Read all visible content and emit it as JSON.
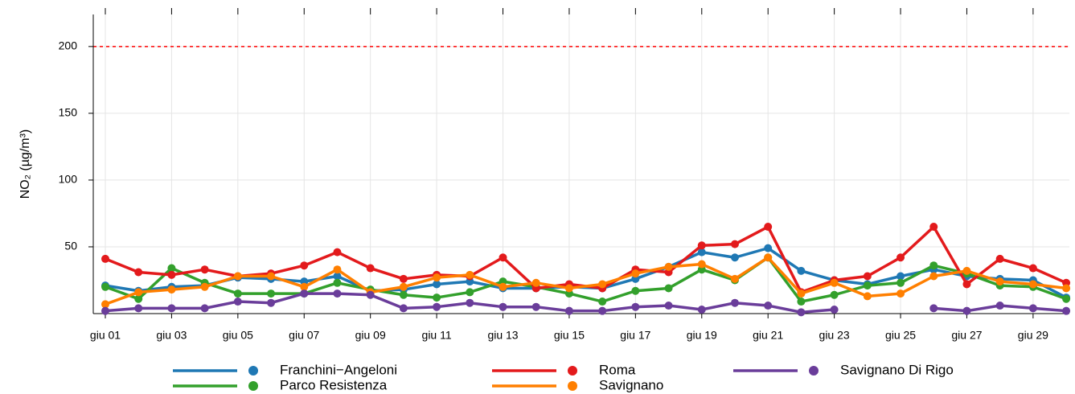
{
  "chart_data": {
    "type": "line",
    "y_label": "NO₂ (µg/m³)",
    "categories": [
      "giu 01",
      null,
      "giu 03",
      null,
      "giu 05",
      null,
      "giu 07",
      null,
      "giu 09",
      null,
      "giu 11",
      null,
      "giu 13",
      null,
      "giu 15",
      null,
      "giu 17",
      null,
      "giu 19",
      null,
      "giu 21",
      null,
      "giu 23",
      null,
      "giu 25",
      null,
      "giu 27",
      null,
      "giu 29",
      null
    ],
    "series": [
      {
        "name": "Franchini−Angeloni",
        "color": "#1f78b4",
        "values": [
          21,
          17,
          20,
          21,
          27,
          26,
          24,
          28,
          17,
          18,
          22,
          24,
          19,
          19,
          20,
          19,
          26,
          35,
          46,
          42,
          49,
          32,
          25,
          22,
          28,
          33,
          28,
          26,
          25,
          12
        ]
      },
      {
        "name": "Parco Resistenza",
        "color": "#33a02c",
        "values": [
          20,
          11,
          34,
          23,
          15,
          15,
          15,
          23,
          18,
          14,
          12,
          16,
          24,
          20,
          15,
          9,
          17,
          19,
          33,
          25,
          42,
          9,
          14,
          21,
          23,
          36,
          30,
          21,
          20,
          11
        ]
      },
      {
        "name": "Roma",
        "color": "#e31a1c",
        "values": [
          41,
          31,
          29,
          33,
          28,
          30,
          36,
          46,
          34,
          26,
          29,
          28,
          42,
          19,
          22,
          19,
          33,
          31,
          51,
          52,
          65,
          16,
          25,
          28,
          42,
          65,
          22,
          41,
          34,
          23
        ]
      },
      {
        "name": "Savignano",
        "color": "#ff7f00",
        "values": [
          7,
          16,
          18,
          20,
          28,
          28,
          20,
          33,
          16,
          20,
          27,
          29,
          20,
          23,
          19,
          22,
          30,
          35,
          37,
          26,
          42,
          15,
          23,
          13,
          15,
          28,
          32,
          24,
          22,
          19
        ]
      },
      {
        "name": "Savignano Di Rigo",
        "color": "#6a3d9a",
        "values": [
          2,
          4,
          4,
          4,
          9,
          8,
          15,
          15,
          14,
          4,
          5,
          8,
          5,
          5,
          2,
          2,
          5,
          6,
          3,
          8,
          6,
          1,
          3,
          null,
          null,
          4,
          2,
          6,
          4,
          2
        ]
      }
    ],
    "ylim": [
      0,
      224
    ],
    "yticks": [
      50,
      100,
      150,
      200
    ],
    "grid": true,
    "reference_line": 200,
    "reference_color": "#ff0000",
    "legend": "bottom"
  }
}
